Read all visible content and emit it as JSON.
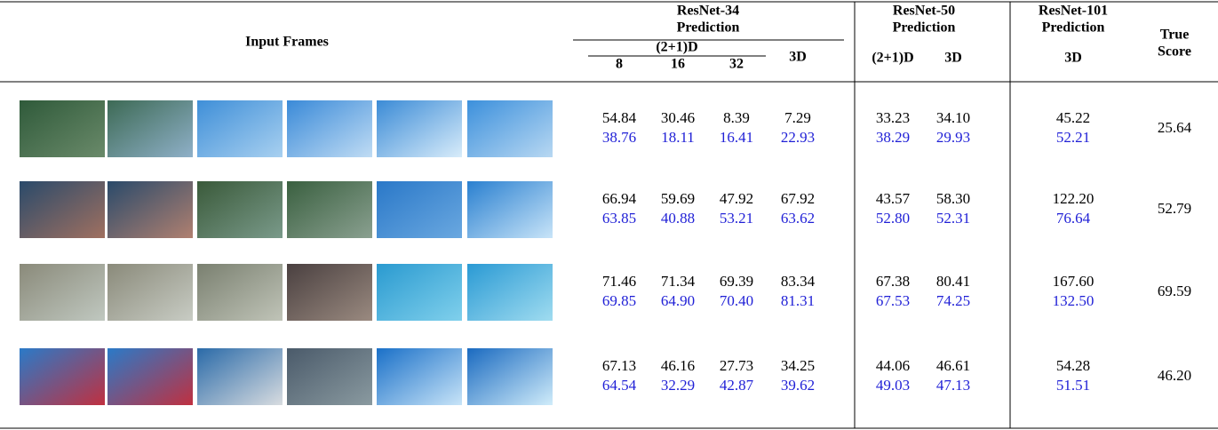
{
  "header": {
    "input_frames": "Input Frames",
    "resnet34": {
      "title": "ResNet-34",
      "subtitle": "Prediction",
      "group": "(2+1)D",
      "columns": [
        "8",
        "16",
        "32",
        "3D"
      ]
    },
    "resnet50": {
      "title": "ResNet-50",
      "subtitle": "Prediction",
      "columns": [
        "(2+1)D",
        "3D"
      ]
    },
    "resnet101": {
      "title": "ResNet-101",
      "subtitle": "Prediction",
      "columns": [
        "3D"
      ]
    },
    "true_score": [
      "True",
      "Score"
    ]
  },
  "rows": [
    {
      "values": [
        [
          "54.84",
          "38.76"
        ],
        [
          "30.46",
          "18.11"
        ],
        [
          "8.39",
          "16.41"
        ],
        [
          "7.29",
          "22.93"
        ],
        [
          "33.23",
          "38.29"
        ],
        [
          "34.10",
          "29.93"
        ],
        [
          "45.22",
          "52.21"
        ]
      ],
      "true_score": "25.64"
    },
    {
      "values": [
        [
          "66.94",
          "63.85"
        ],
        [
          "59.69",
          "40.88"
        ],
        [
          "47.92",
          "53.21"
        ],
        [
          "67.92",
          "63.62"
        ],
        [
          "43.57",
          "52.80"
        ],
        [
          "58.30",
          "52.31"
        ],
        [
          "122.20",
          "76.64"
        ]
      ],
      "true_score": "52.79"
    },
    {
      "values": [
        [
          "71.46",
          "69.85"
        ],
        [
          "71.34",
          "64.90"
        ],
        [
          "69.39",
          "70.40"
        ],
        [
          "83.34",
          "81.31"
        ],
        [
          "67.38",
          "67.53"
        ],
        [
          "80.41",
          "74.25"
        ],
        [
          "167.60",
          "132.50"
        ]
      ],
      "true_score": "69.59"
    },
    {
      "values": [
        [
          "67.13",
          "64.54"
        ],
        [
          "46.16",
          "32.29"
        ],
        [
          "27.73",
          "42.87"
        ],
        [
          "34.25",
          "39.62"
        ],
        [
          "44.06",
          "49.03"
        ],
        [
          "46.61",
          "47.13"
        ],
        [
          "54.28",
          "51.51"
        ]
      ],
      "true_score": "46.20"
    }
  ]
}
